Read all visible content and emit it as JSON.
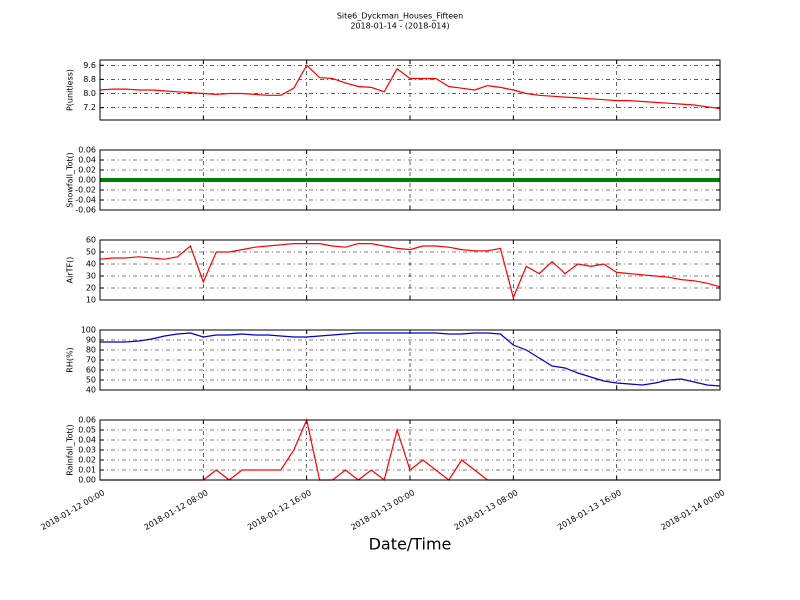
{
  "figure": {
    "title": "Site6_Dyckman_Houses_Fifteen",
    "subtitle": "2018-01-14 - (2018-014)",
    "xlabel": "Date/Time",
    "xlim": [
      "2018-01-12 00:00",
      "2018-01-14 00:00"
    ],
    "xticks": [
      "2018-01-12 00:00",
      "2018-01-12 08:00",
      "2018-01-12 16:00",
      "2018-01-13 00:00",
      "2018-01-13 08:00",
      "2018-01-13 16:00",
      "2018-01-14 00:00"
    ],
    "x": [
      "2018-01-12 00:00",
      "2018-01-12 01:00",
      "2018-01-12 02:00",
      "2018-01-12 03:00",
      "2018-01-12 04:00",
      "2018-01-12 05:00",
      "2018-01-12 06:00",
      "2018-01-12 07:00",
      "2018-01-12 08:00",
      "2018-01-12 09:00",
      "2018-01-12 10:00",
      "2018-01-12 11:00",
      "2018-01-12 12:00",
      "2018-01-12 13:00",
      "2018-01-12 14:00",
      "2018-01-12 15:00",
      "2018-01-12 16:00",
      "2018-01-12 17:00",
      "2018-01-12 18:00",
      "2018-01-12 19:00",
      "2018-01-12 20:00",
      "2018-01-12 21:00",
      "2018-01-12 22:00",
      "2018-01-12 23:00",
      "2018-01-13 00:00",
      "2018-01-13 01:00",
      "2018-01-13 02:00",
      "2018-01-13 03:00",
      "2018-01-13 04:00",
      "2018-01-13 05:00",
      "2018-01-13 06:00",
      "2018-01-13 07:00",
      "2018-01-13 08:00",
      "2018-01-13 09:00",
      "2018-01-13 10:00",
      "2018-01-13 11:00",
      "2018-01-13 12:00",
      "2018-01-13 13:00",
      "2018-01-13 14:00",
      "2018-01-13 15:00",
      "2018-01-13 16:00",
      "2018-01-13 17:00",
      "2018-01-13 18:00",
      "2018-01-13 19:00",
      "2018-01-13 20:00",
      "2018-01-13 21:00",
      "2018-01-13 22:00",
      "2018-01-13 23:00",
      "2018-01-14 00:00"
    ]
  },
  "chart_data": [
    {
      "type": "line",
      "ylabel": "P(unitless)",
      "color": "#ff0000",
      "grid": true,
      "ylim": [
        6.5,
        9.9
      ],
      "yticks": [
        7.2,
        {
          "value": 8,
          "label": "8.0"
        },
        8.8,
        9.6
      ],
      "values": [
        8.2,
        8.25,
        8.25,
        8.2,
        8.2,
        8.15,
        8.1,
        8.05,
        8.0,
        7.95,
        8.0,
        8.0,
        7.95,
        7.9,
        7.9,
        8.3,
        9.6,
        8.9,
        8.85,
        8.6,
        8.4,
        8.35,
        8.1,
        9.4,
        8.85,
        8.85,
        8.85,
        8.4,
        8.3,
        8.2,
        8.45,
        8.35,
        8.2,
        8.0,
        7.9,
        7.85,
        7.8,
        7.75,
        7.7,
        7.65,
        7.6,
        7.6,
        7.55,
        7.5,
        7.45,
        7.4,
        7.35,
        7.25,
        7.15
      ]
    },
    {
      "type": "line",
      "ylabel": "Snowfall_Tot()",
      "color": "#008000",
      "grid": true,
      "ylim": [
        -0.06,
        0.06
      ],
      "yticks": [
        -0.06,
        -0.04,
        -0.02,
        {
          "value": 0,
          "label": "0.00"
        },
        0.02,
        0.04,
        0.06
      ],
      "values": [
        0,
        0,
        0,
        0,
        0,
        0,
        0,
        0,
        0,
        0,
        0,
        0,
        0,
        0,
        0,
        0,
        0,
        0,
        0,
        0,
        0,
        0,
        0,
        0,
        0,
        0,
        0,
        0,
        0,
        0,
        0,
        0,
        0,
        0,
        0,
        0,
        0,
        0,
        0,
        0,
        0,
        0,
        0,
        0,
        0,
        0,
        0,
        0,
        0
      ]
    },
    {
      "type": "line",
      "ylabel": "AirTF()",
      "color": "#ff0000",
      "grid": true,
      "ylim": [
        10,
        60
      ],
      "yticks": [
        10,
        20,
        30,
        40,
        50,
        60
      ],
      "values": [
        44,
        45,
        45,
        46,
        45,
        44,
        46,
        55,
        25,
        50,
        50,
        52,
        54,
        55,
        56,
        57,
        57,
        57,
        55,
        54,
        57,
        57,
        55,
        53,
        52,
        55,
        55,
        54,
        52,
        51,
        51,
        53,
        12,
        38,
        32,
        42,
        32,
        40,
        38,
        40,
        33,
        32,
        31,
        30,
        29,
        27,
        26,
        24,
        21
      ]
    },
    {
      "type": "line",
      "ylabel": "RH(%)",
      "color": "#0000cc",
      "grid": true,
      "ylim": [
        40,
        100
      ],
      "yticks": [
        40,
        50,
        60,
        70,
        80,
        90,
        100
      ],
      "values": [
        88,
        88,
        88,
        89,
        91,
        94,
        96,
        97,
        93,
        95,
        95,
        96,
        95,
        95,
        94,
        93,
        93,
        94,
        95,
        96,
        97,
        97,
        97,
        97,
        97,
        97,
        97,
        96,
        96,
        97,
        97,
        96,
        85,
        80,
        72,
        64,
        62,
        57,
        53,
        49,
        47,
        46,
        45,
        47,
        50,
        51,
        48,
        45,
        44
      ]
    },
    {
      "type": "line",
      "ylabel": "Rainfall_Tot()",
      "color": "#ff0000",
      "grid": true,
      "ylim": [
        0,
        0.06
      ],
      "yticks": [
        {
          "value": 0,
          "label": "0.00"
        },
        0.01,
        0.02,
        0.03,
        0.04,
        0.05,
        0.06
      ],
      "values": [
        0,
        0,
        0,
        0,
        0,
        0,
        0,
        0,
        0,
        0.01,
        0,
        0.01,
        0.01,
        0.01,
        0.01,
        0.03,
        0.06,
        0,
        0,
        0.01,
        0,
        0.01,
        0,
        0.05,
        0.01,
        0.02,
        0.01,
        0,
        0.02,
        0.01,
        0,
        0,
        0,
        0,
        0,
        0,
        0,
        0,
        0,
        0,
        0,
        0,
        0,
        0,
        0,
        0,
        0,
        0,
        0
      ]
    }
  ]
}
